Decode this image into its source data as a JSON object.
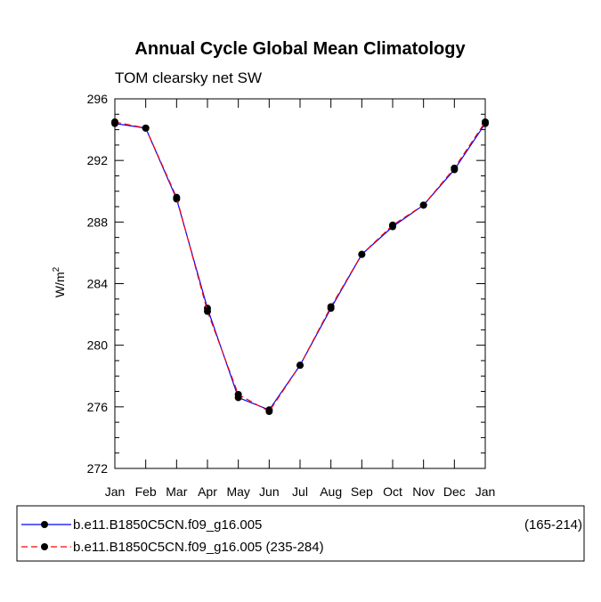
{
  "chart_data": {
    "type": "line",
    "title": "Annual Cycle Global Mean Climatology",
    "subtitle": "TOM clearsky net SW",
    "xlabel": "",
    "ylabel": "W/m",
    "ylabel_sup": "2",
    "categories": [
      "Jan",
      "Feb",
      "Mar",
      "Apr",
      "May",
      "Jun",
      "Jul",
      "Aug",
      "Sep",
      "Oct",
      "Nov",
      "Dec",
      "Jan"
    ],
    "ylim": [
      272,
      296
    ],
    "yticks": [
      272,
      276,
      280,
      284,
      288,
      292,
      296
    ],
    "yticks_minor_step": 1,
    "grid": false,
    "series": [
      {
        "name": "b.e11.B1850C5CN.f09_g16.005",
        "period": "(165-214)",
        "color": "#0000ff",
        "dash": "solid",
        "marker": "circle",
        "values": [
          294.4,
          294.1,
          289.5,
          282.4,
          276.6,
          275.8,
          278.7,
          282.4,
          285.9,
          287.7,
          289.1,
          291.4,
          294.4
        ]
      },
      {
        "name": "b.e11.B1850C5CN.f09_g16.005 (235-284)",
        "period": "",
        "color": "#ff0000",
        "dash": "dashed",
        "marker": "circle",
        "values": [
          294.5,
          294.1,
          289.6,
          282.2,
          276.8,
          275.7,
          278.7,
          282.5,
          285.9,
          287.8,
          289.1,
          291.5,
          294.5
        ]
      }
    ]
  }
}
